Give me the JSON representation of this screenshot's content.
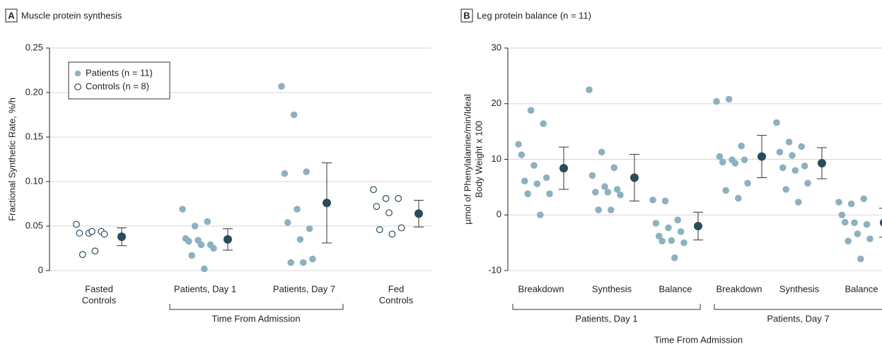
{
  "chart_data": [
    {
      "type": "strip",
      "panel": "A",
      "title": "Muscle protein synthesis",
      "ylabel": [
        "Fractional Synthetic Rate, %/h"
      ],
      "ylim": [
        0,
        0.25
      ],
      "yticks": [
        0,
        0.05,
        {
          "value": 0.1,
          "label": "0.10"
        },
        0.15,
        {
          "value": 0.2,
          "label": "0.20"
        },
        0.25
      ],
      "grid": true,
      "legend": "upper left",
      "categories": [
        [
          "Fasted",
          "Controls"
        ],
        [
          "Patients, Day 1"
        ],
        [
          "Patients, Day 7"
        ],
        [
          "Fed",
          "Controls"
        ]
      ],
      "group_label": "Time From Admission",
      "series": [
        {
          "name": "Patients (n = 11)",
          "color": "#8cb1c0",
          "filled": true,
          "values": [
            null,
            [
              0.069,
              0.05,
              0.055,
              0.036,
              0.034,
              0.029,
              0.033,
              0.029,
              0.025,
              0.017,
              0.002
            ],
            [
              0.207,
              0.175,
              0.111,
              0.109,
              0.069,
              0.047,
              0.054,
              0.035,
              0.013,
              0.009,
              0.009
            ],
            null
          ]
        },
        {
          "name": "Controls (n = 8)",
          "color": "#2c4a5a",
          "filled": false,
          "values": [
            [
              0.052,
              0.042,
              0.044,
              0.042,
              0.044,
              0.041,
              0.018,
              0.022
            ],
            null,
            null,
            [
              0.091,
              0.081,
              0.081,
              0.072,
              0.065,
              0.048,
              0.046,
              0.041
            ]
          ]
        }
      ],
      "means": {
        "color": "#2c4a5a",
        "values": [
          0.038,
          0.035,
          0.076,
          0.064
        ],
        "errors": [
          0.01,
          0.012,
          0.045,
          0.015
        ]
      }
    },
    {
      "type": "strip",
      "panel": "B",
      "title": "Leg protein balance (n = 11)",
      "ylabel": [
        "µmol of Phenylalanine/min/Ideal",
        "Body Weight x 100"
      ],
      "ylim": [
        -10,
        30
      ],
      "yticks": [
        -10,
        0,
        10,
        20,
        30
      ],
      "grid": true,
      "categories": [
        "Breakdown",
        "Synthesis",
        "Balance",
        "Breakdown",
        "Synthesis",
        "Balance"
      ],
      "groups": [
        "Patients, Day 1",
        "Patients, Day 7"
      ],
      "group_label": "Time From Admission",
      "series": [
        {
          "color": "#8cb1c0",
          "filled": true,
          "values": [
            [
              12.7,
              18.8,
              16.4,
              10.8,
              8.9,
              6.7,
              6.1,
              5.6,
              3.8,
              3.8,
              0
            ],
            [
              22.5,
              11.3,
              8.5,
              7.1,
              5.1,
              4.6,
              4.1,
              4.1,
              3.6,
              0.9,
              0.9
            ],
            [
              2.7,
              2.5,
              -0.9,
              -1.5,
              -2.3,
              -3.0,
              -3.8,
              -4.6,
              -5.0,
              -4.7,
              -7.7
            ],
            [
              20.4,
              20.8,
              12.4,
              10.5,
              9.9,
              9.9,
              9.5,
              9.3,
              5.7,
              4.4,
              3.0
            ],
            [
              16.6,
              13.1,
              12.3,
              11.3,
              10.7,
              8.8,
              8.5,
              8.0,
              5.7,
              4.6,
              2.3
            ],
            [
              2.3,
              2.0,
              2.9,
              0,
              -1.4,
              -1.7,
              -1.3,
              -3.4,
              -4.3,
              -4.7,
              -7.9
            ]
          ]
        }
      ],
      "means": {
        "color": "#2c4a5a",
        "values": [
          8.4,
          6.7,
          -2.0,
          10.5,
          9.3,
          -1.4
        ],
        "errors": [
          3.8,
          4.2,
          2.5,
          3.8,
          2.8,
          2.6
        ]
      }
    }
  ]
}
